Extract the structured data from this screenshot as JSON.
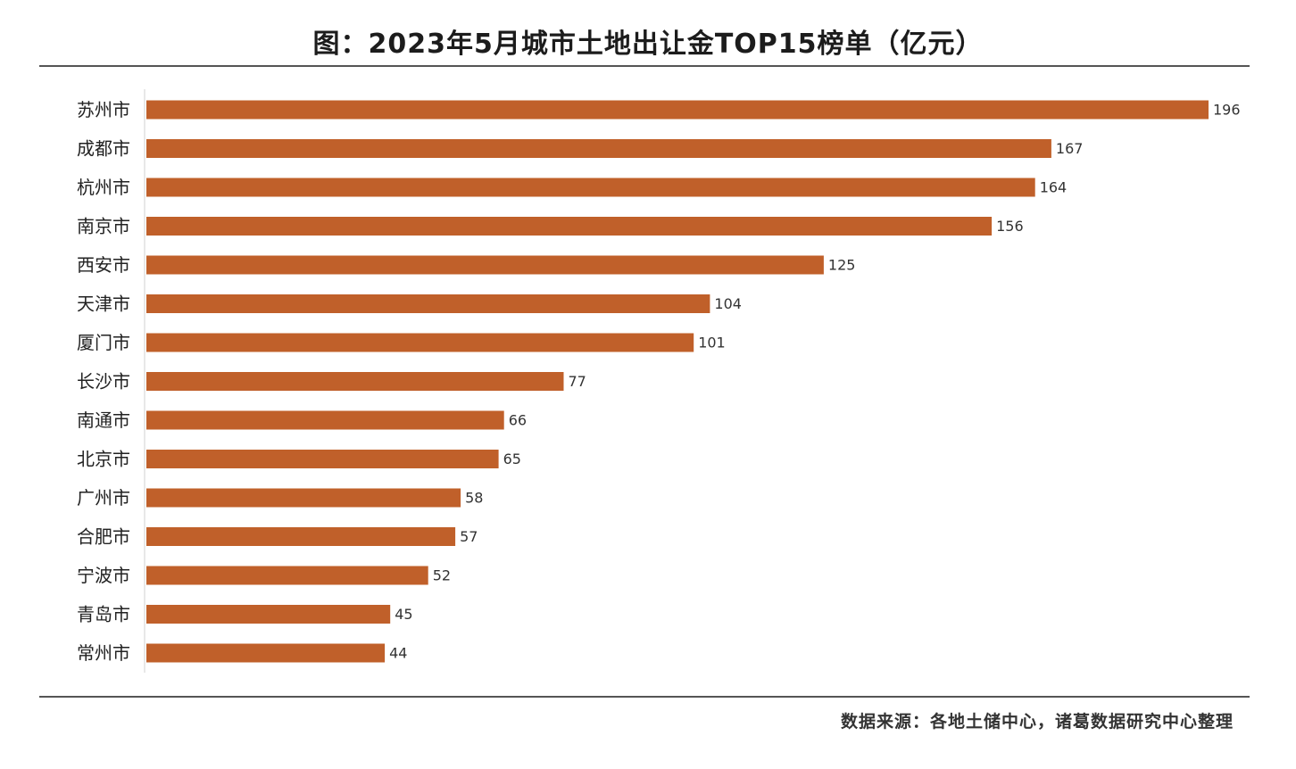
{
  "chart_data": {
    "type": "bar",
    "orientation": "horizontal",
    "title": "图：2023年5月城市土地出让金TOP15榜单（亿元）",
    "unit": "亿元",
    "categories": [
      "苏州市",
      "成都市",
      "杭州市",
      "南京市",
      "西安市",
      "天津市",
      "厦门市",
      "长沙市",
      "南通市",
      "北京市",
      "广州市",
      "合肥市",
      "宁波市",
      "青岛市",
      "常州市"
    ],
    "values": [
      196,
      167,
      164,
      156,
      125,
      104,
      101,
      77,
      66,
      65,
      58,
      57,
      52,
      45,
      44
    ],
    "xlim": [
      0,
      196
    ],
    "grid": false,
    "data_labels": true,
    "bar_color": "#C0602A"
  },
  "source": "数据来源：各地土储中心，诸葛数据研究中心整理"
}
